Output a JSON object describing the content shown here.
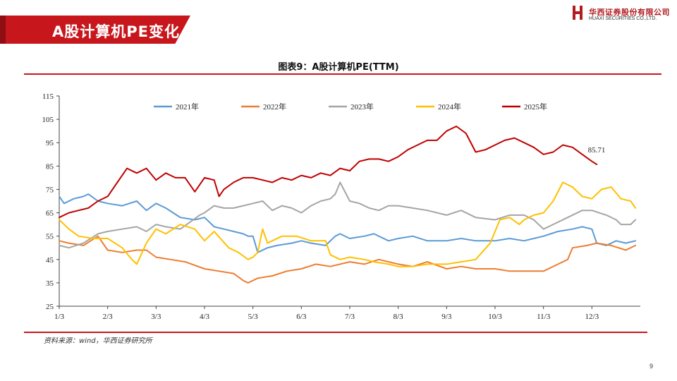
{
  "header": {
    "title": "A股计算机PE变化",
    "logo_cn": "华西证券股份有限公司",
    "logo_en": "HUAXI SECURITIES CO.,LTD."
  },
  "chart_title": "图表9：A股计算机PE(TTM)",
  "source": "资料来源：wind，华西证券研究所",
  "page_number": "9",
  "colors": {
    "brand_red": "#c8161d",
    "s2021": "#5b9bd5",
    "s2022": "#ed7d31",
    "s2023": "#a5a5a5",
    "s2024": "#ffc000",
    "s2025": "#c00000"
  },
  "chart_data": {
    "type": "line",
    "title": "图表9：A股计算机PE(TTM)",
    "xlabel": "",
    "ylabel": "",
    "xlim": [
      0,
      12
    ],
    "ylim": [
      25,
      115
    ],
    "yticks": [
      "25",
      "35",
      "45",
      "55",
      "65",
      "75",
      "85",
      "95",
      "105",
      "115"
    ],
    "xticks": [
      "1/3",
      "2/3",
      "3/3",
      "4/3",
      "5/3",
      "6/3",
      "7/3",
      "8/3",
      "9/3",
      "10/3",
      "11/3",
      "12/3"
    ],
    "legend_position": "top",
    "series": [
      {
        "name": "2021年",
        "color": "#5b9bd5",
        "x": [
          0,
          0.1,
          0.3,
          0.5,
          0.6,
          0.8,
          1.0,
          1.3,
          1.6,
          1.8,
          2.0,
          2.2,
          2.5,
          2.8,
          3.0,
          3.2,
          3.4,
          3.6,
          3.8,
          3.9,
          4.0,
          4.1,
          4.3,
          4.5,
          4.8,
          5.0,
          5.2,
          5.5,
          5.7,
          5.8,
          6.0,
          6.3,
          6.5,
          6.8,
          7.0,
          7.3,
          7.6,
          8.0,
          8.3,
          8.6,
          9.0,
          9.3,
          9.6,
          9.8,
          10.0,
          10.3,
          10.6,
          10.8,
          11.0,
          11.1,
          11.3,
          11.5,
          11.7,
          11.9
        ],
        "y": [
          72,
          69,
          71,
          72,
          73,
          70,
          69,
          68,
          70,
          66,
          69,
          67,
          63,
          62,
          63,
          59,
          58,
          57,
          56,
          55,
          55,
          48,
          50,
          51,
          52,
          53,
          52,
          51,
          55,
          56,
          54,
          55,
          56,
          53,
          54,
          55,
          53,
          53,
          54,
          53,
          53,
          54,
          53,
          54,
          55,
          57,
          58,
          59,
          58,
          52,
          51,
          53,
          52,
          53
        ]
      },
      {
        "name": "2022年",
        "color": "#ed7d31",
        "x": [
          0,
          0.2,
          0.5,
          0.8,
          1.0,
          1.3,
          1.6,
          1.8,
          2.0,
          2.3,
          2.6,
          3.0,
          3.3,
          3.6,
          3.8,
          3.9,
          4.1,
          4.4,
          4.7,
          5.0,
          5.3,
          5.6,
          6.0,
          6.3,
          6.6,
          7.0,
          7.3,
          7.6,
          8.0,
          8.3,
          8.6,
          9.0,
          9.3,
          9.6,
          9.8,
          10.0,
          10.3,
          10.5,
          10.6,
          10.9,
          11.1,
          11.4,
          11.7,
          11.9
        ],
        "y": [
          53,
          52,
          51,
          55,
          49,
          48,
          49,
          49,
          46,
          45,
          44,
          41,
          40,
          39,
          36,
          35,
          37,
          38,
          40,
          41,
          43,
          42,
          44,
          43,
          45,
          43,
          42,
          44,
          41,
          42,
          41,
          41,
          40,
          40,
          40,
          40,
          43,
          45,
          50,
          51,
          52,
          51,
          49,
          51
        ]
      },
      {
        "name": "2023年",
        "color": "#a5a5a5",
        "x": [
          0,
          0.2,
          0.5,
          0.8,
          1.0,
          1.3,
          1.6,
          1.8,
          2.0,
          2.2,
          2.5,
          2.7,
          2.9,
          3.0,
          3.2,
          3.4,
          3.6,
          3.8,
          4.0,
          4.2,
          4.4,
          4.6,
          4.8,
          5.0,
          5.2,
          5.4,
          5.6,
          5.7,
          5.8,
          6.0,
          6.2,
          6.4,
          6.6,
          6.8,
          7.0,
          7.3,
          7.6,
          8.0,
          8.3,
          8.6,
          9.0,
          9.3,
          9.6,
          9.8,
          10.0,
          10.2,
          10.5,
          10.8,
          11.0,
          11.3,
          11.5,
          11.6,
          11.8,
          11.9
        ],
        "y": [
          51,
          50,
          52,
          56,
          57,
          58,
          59,
          57,
          60,
          59,
          58,
          61,
          64,
          65,
          68,
          67,
          67,
          68,
          69,
          70,
          66,
          68,
          67,
          65,
          68,
          70,
          71,
          73,
          78,
          70,
          69,
          67,
          66,
          68,
          68,
          67,
          66,
          64,
          66,
          63,
          62,
          64,
          64,
          62,
          58,
          60,
          63,
          66,
          66,
          64,
          62,
          60,
          60,
          62
        ]
      },
      {
        "name": "2024年",
        "color": "#ffc000",
        "x": [
          0,
          0.2,
          0.4,
          0.7,
          1.0,
          1.3,
          1.5,
          1.6,
          1.8,
          2.0,
          2.2,
          2.5,
          2.8,
          3.0,
          3.2,
          3.5,
          3.7,
          3.9,
          4.0,
          4.1,
          4.2,
          4.3,
          4.6,
          4.9,
          5.2,
          5.5,
          5.6,
          5.8,
          6.0,
          6.3,
          6.5,
          6.8,
          7.0,
          7.3,
          7.6,
          8.0,
          8.3,
          8.6,
          8.9,
          9.1,
          9.3,
          9.5,
          9.6,
          9.8,
          10.0,
          10.2,
          10.4,
          10.6,
          10.8,
          11.0,
          11.2,
          11.4,
          11.6,
          11.8,
          11.9
        ],
        "y": [
          62,
          58,
          55,
          54,
          54,
          50,
          45,
          43,
          52,
          58,
          56,
          60,
          58,
          53,
          57,
          50,
          48,
          45,
          46,
          48,
          58,
          52,
          55,
          55,
          53,
          53,
          47,
          45,
          46,
          45,
          44,
          43,
          42,
          42,
          43,
          43,
          44,
          45,
          52,
          62,
          63,
          60,
          62,
          64,
          65,
          70,
          78,
          76,
          72,
          71,
          75,
          76,
          71,
          70,
          67
        ]
      },
      {
        "name": "2025年",
        "color": "#c00000",
        "x": [
          0,
          0.2,
          0.4,
          0.6,
          0.8,
          1.0,
          1.2,
          1.4,
          1.6,
          1.8,
          2.0,
          2.2,
          2.4,
          2.6,
          2.8,
          3.0,
          3.2,
          3.3,
          3.4,
          3.6,
          3.8,
          4.0,
          4.2,
          4.4,
          4.6,
          4.8,
          5.0,
          5.2,
          5.4,
          5.6,
          5.8,
          6.0,
          6.2,
          6.4,
          6.6,
          6.8,
          7.0,
          7.2,
          7.4,
          7.6,
          7.8,
          8.0,
          8.2,
          8.4,
          8.6,
          8.8,
          9.0,
          9.2,
          9.4,
          9.6,
          9.8,
          10.0,
          10.2,
          10.4,
          10.6,
          10.8,
          11.0,
          11.1
        ],
        "y": [
          63,
          65,
          66,
          67,
          70,
          72,
          78,
          84,
          82,
          84,
          79,
          82,
          80,
          80,
          74,
          80,
          79,
          72,
          75,
          78,
          80,
          80,
          79,
          78,
          80,
          79,
          81,
          80,
          82,
          81,
          84,
          83,
          87,
          88,
          88,
          87,
          89,
          92,
          94,
          96,
          96,
          100,
          102,
          99,
          91,
          92,
          94,
          96,
          97,
          95,
          93,
          90,
          91,
          94,
          93,
          90,
          87,
          85.71
        ]
      }
    ],
    "annotations": [
      {
        "text": "85.71",
        "series": "2025年"
      }
    ]
  }
}
